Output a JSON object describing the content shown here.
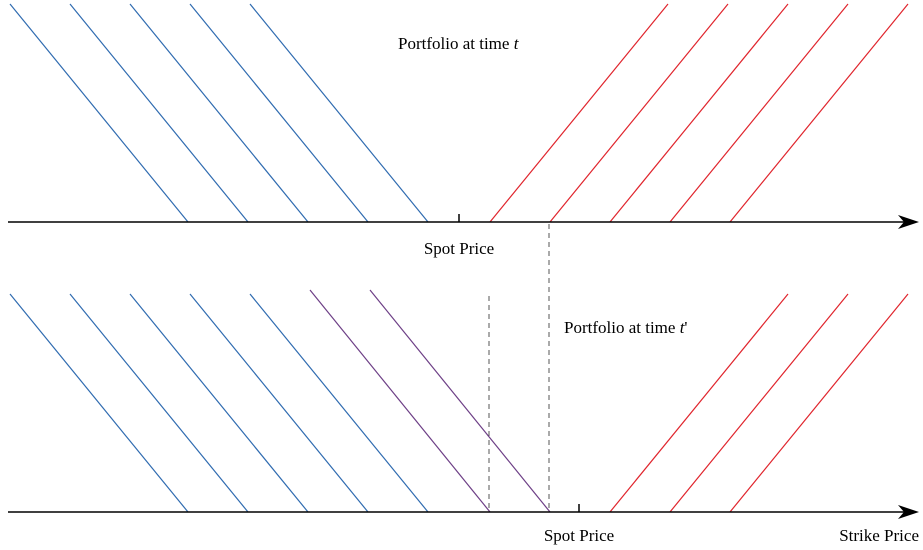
{
  "colors": {
    "put": "#2f6bb0",
    "call": "#e0242c",
    "shifted": "#6d3f86",
    "axis": "#000000",
    "dashed": "#555555"
  },
  "top_panel": {
    "title_text": "Portfolio at time ",
    "title_var": "t",
    "title_suffix": "",
    "axis_label": "Spot Price"
  },
  "bottom_panel": {
    "title_text": "Portfolio at time ",
    "title_var": "t",
    "title_suffix": "'",
    "axis_label": "Spot Price",
    "axis_end_label": "Strike Price"
  }
}
